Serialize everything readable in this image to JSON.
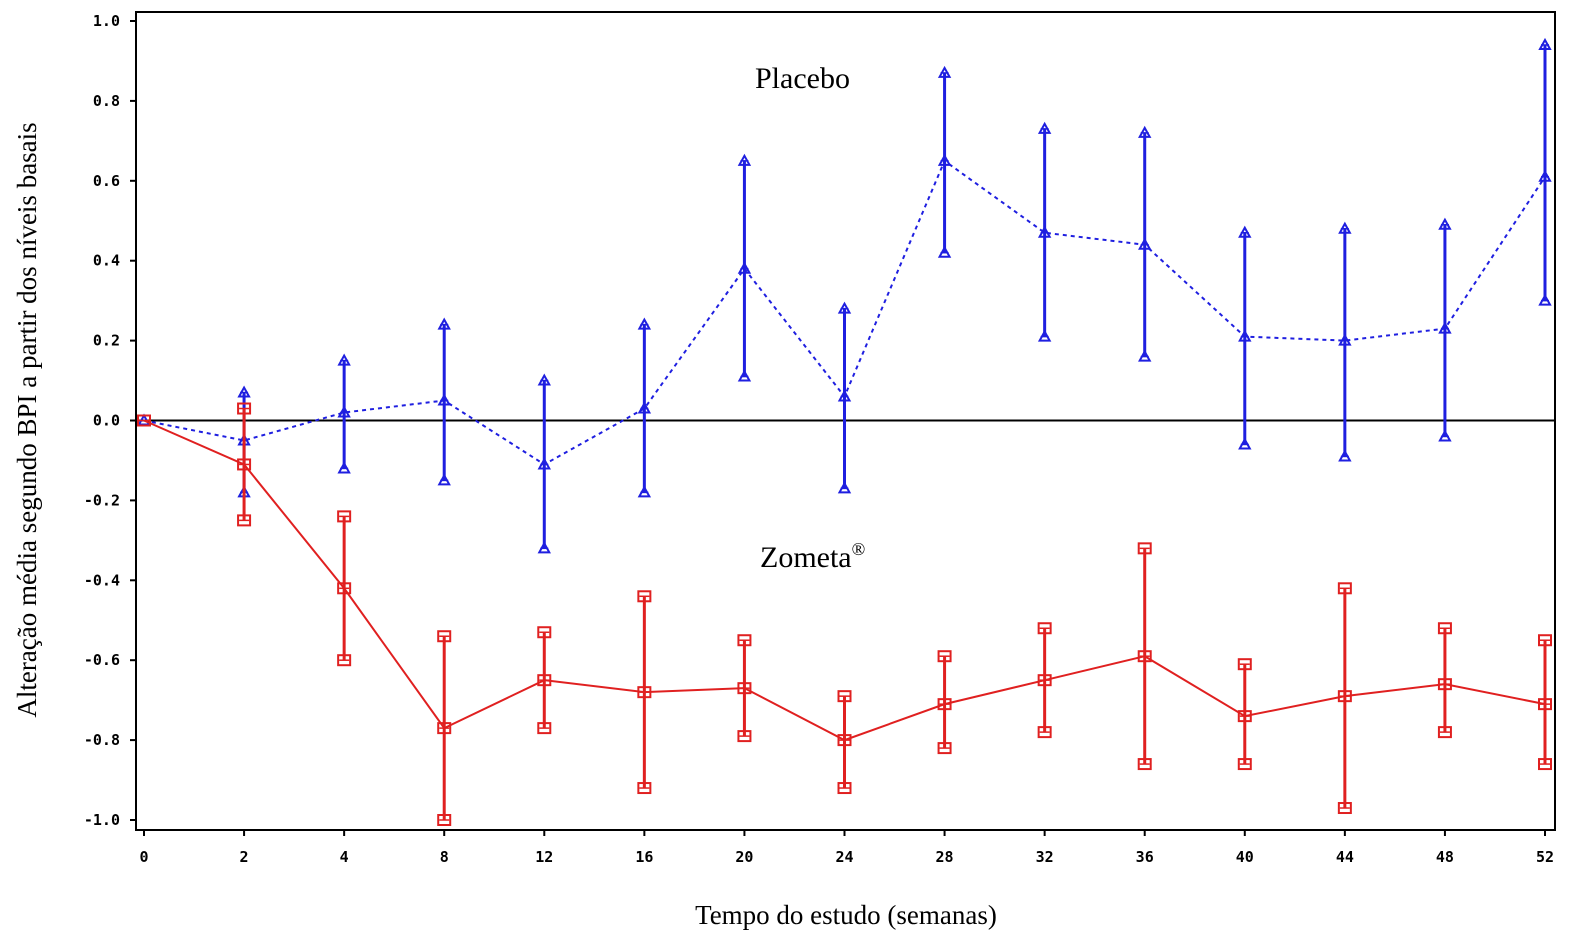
{
  "chart_data": {
    "type": "line",
    "xlabel": "Tempo do estudo (semanas)",
    "ylabel": "Alteração média segundo BPI a partir dos níveis basais",
    "xlim": [
      0,
      52
    ],
    "ylim": [
      -1.0,
      1.0
    ],
    "x_tick_values": [
      0,
      2,
      4,
      8,
      12,
      16,
      20,
      24,
      28,
      32,
      36,
      40,
      44,
      48,
      52
    ],
    "x_tick_labels": [
      "0",
      "2",
      "4",
      "8",
      "12",
      "16",
      "20",
      "24",
      "28",
      "32",
      "36",
      "40",
      "44",
      "48",
      "52"
    ],
    "y_ticks": [
      1.0,
      0.8,
      0.6,
      0.4,
      0.2,
      0.0,
      -0.2,
      -0.4,
      -0.6,
      -0.8,
      -1.0
    ],
    "y_tick_labels": [
      "1.0",
      "0.8",
      "0.6",
      "0.4",
      "0.2",
      "0.0",
      "-0.2",
      "-0.4",
      "-0.6",
      "-0.8",
      "-1.0"
    ],
    "reference_line_y": 0.0,
    "annotations": [
      {
        "series": "Placebo",
        "text": "Placebo",
        "superscript": ""
      },
      {
        "series": "Zometa",
        "text": "Zometa",
        "superscript": "®"
      }
    ],
    "series": [
      {
        "name": "Placebo",
        "color": "#1f1fe0",
        "line_style": "dotted",
        "marker": "triangle",
        "values": [
          0.0,
          -0.05,
          0.02,
          0.05,
          -0.11,
          0.03,
          0.38,
          0.06,
          0.65,
          0.47,
          0.44,
          0.21,
          0.2,
          0.23,
          0.61
        ],
        "lower": [
          0.0,
          -0.18,
          -0.12,
          -0.15,
          -0.32,
          -0.18,
          0.11,
          -0.17,
          0.42,
          0.21,
          0.16,
          -0.06,
          -0.09,
          -0.04,
          0.3
        ],
        "upper": [
          0.0,
          0.07,
          0.15,
          0.24,
          0.1,
          0.24,
          0.65,
          0.28,
          0.87,
          0.73,
          0.72,
          0.47,
          0.48,
          0.49,
          0.94
        ]
      },
      {
        "name": "Zometa",
        "color": "#e02020",
        "line_style": "solid",
        "marker": "square",
        "values": [
          0.0,
          -0.11,
          -0.42,
          -0.77,
          -0.65,
          -0.68,
          -0.67,
          -0.8,
          -0.71,
          -0.65,
          -0.59,
          -0.74,
          -0.69,
          -0.66,
          -0.71
        ],
        "lower": [
          0.0,
          -0.25,
          -0.6,
          -1.0,
          -0.77,
          -0.92,
          -0.79,
          -0.92,
          -0.82,
          -0.78,
          -0.86,
          -0.86,
          -0.97,
          -0.78,
          -0.86
        ],
        "upper": [
          0.0,
          0.03,
          -0.24,
          -0.54,
          -0.53,
          -0.44,
          -0.55,
          -0.69,
          -0.59,
          -0.52,
          -0.32,
          -0.61,
          -0.42,
          -0.52,
          -0.55
        ]
      }
    ]
  }
}
